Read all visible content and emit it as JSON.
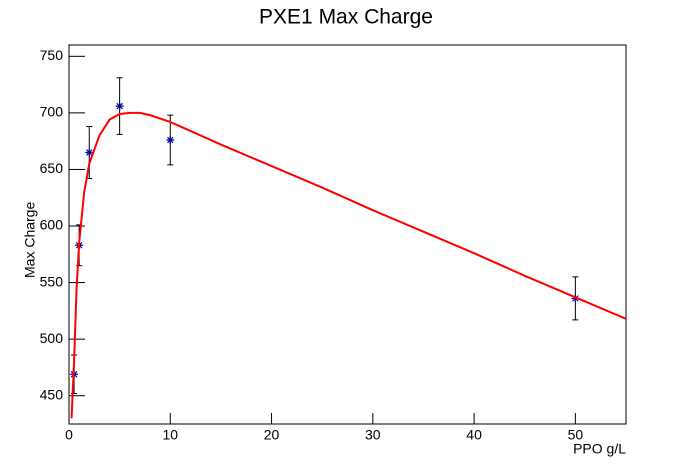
{
  "chart_data": {
    "type": "scatter",
    "title": "PXE1 Max Charge",
    "x_label": "PPO g/L",
    "y_label": "Max Charge",
    "xlim": [
      0,
      55
    ],
    "ylim": [
      425,
      760
    ],
    "xticks": [
      0,
      10,
      20,
      30,
      40,
      50
    ],
    "yticks": [
      450,
      500,
      550,
      600,
      650,
      700,
      750
    ],
    "grid": false,
    "series": [
      {
        "style": "errorbar",
        "marker": "asterisk",
        "color": "#000099",
        "x": [
          0.5,
          1,
          2,
          5,
          10,
          50
        ],
        "values": [
          469,
          583,
          665,
          706,
          676,
          536
        ],
        "errors": [
          17,
          18,
          23,
          25,
          22,
          19
        ]
      },
      {
        "style": "line",
        "color": "#ff0000",
        "x": [
          0.25,
          0.5,
          0.75,
          1,
          1.5,
          2,
          3,
          4,
          5,
          6,
          7,
          8,
          10,
          15,
          20,
          25,
          30,
          35,
          40,
          45,
          50,
          55
        ],
        "values": [
          430,
          480,
          545,
          585,
          630,
          655,
          680,
          694,
          699,
          700,
          700,
          698,
          692,
          672,
          653,
          634,
          614,
          595,
          576,
          556,
          537,
          518
        ]
      }
    ]
  }
}
